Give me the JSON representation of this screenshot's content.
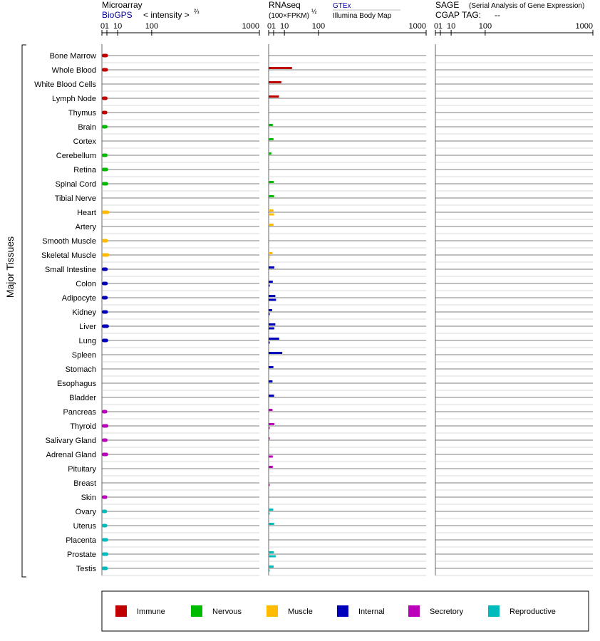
{
  "panels": {
    "microarray": {
      "title": "Microarray",
      "source": "BioGPS",
      "unit": "< intensity >",
      "unit_exp": "⅔",
      "ticks": [
        "0",
        "1",
        "10",
        "100",
        "1000"
      ]
    },
    "rnaseq": {
      "title": "RNAseq",
      "unit": "(100×FPKM)",
      "unit_exp": "½",
      "source1": "GTEx",
      "source2": "Illumina Body Map",
      "ticks": [
        "0",
        "1",
        "10",
        "100",
        "1000"
      ]
    },
    "sage": {
      "title": "SAGE",
      "subtitle": "(Serial Analysis of Gene Expression)",
      "cgap": "CGAP TAG:",
      "cgap_value": "--",
      "ticks": [
        "0",
        "1",
        "10",
        "100",
        "1000"
      ]
    }
  },
  "y_group_label": "Major Tissues",
  "chart_data": {
    "type": "bar",
    "orientation": "horizontal",
    "x_scale": "power transform (0, 1, 10, 100, 1000)",
    "categories": [
      "Bone Marrow",
      "Whole Blood",
      "White Blood Cells",
      "Lymph Node",
      "Thymus",
      "Brain",
      "Cortex",
      "Cerebellum",
      "Retina",
      "Spinal Cord",
      "Tibial Nerve",
      "Heart",
      "Artery",
      "Smooth Muscle",
      "Skeletal Muscle",
      "Small Intestine",
      "Colon",
      "Adipocyte",
      "Kidney",
      "Liver",
      "Lung",
      "Spleen",
      "Stomach",
      "Esophagus",
      "Bladder",
      "Pancreas",
      "Thyroid",
      "Salivary Gland",
      "Adrenal Gland",
      "Pituitary",
      "Breast",
      "Skin",
      "Ovary",
      "Uterus",
      "Placenta",
      "Prostate",
      "Testis"
    ],
    "groups": [
      "Immune",
      "Immune",
      "Immune",
      "Immune",
      "Immune",
      "Nervous",
      "Nervous",
      "Nervous",
      "Nervous",
      "Nervous",
      "Nervous",
      "Muscle",
      "Muscle",
      "Muscle",
      "Muscle",
      "Internal",
      "Internal",
      "Internal",
      "Internal",
      "Internal",
      "Internal",
      "Internal",
      "Internal",
      "Internal",
      "Internal",
      "Secretory",
      "Secretory",
      "Secretory",
      "Secretory",
      "Secretory",
      "Secretory",
      "Secretory",
      "Reproductive",
      "Reproductive",
      "Reproductive",
      "Reproductive",
      "Reproductive"
    ],
    "series": [
      {
        "name": "BioGPS",
        "values": [
          1.5,
          1.5,
          null,
          1.3,
          1.2,
          1.3,
          null,
          1.3,
          1.6,
          1.6,
          null,
          2.2,
          null,
          1.5,
          2.2,
          1.4,
          1.4,
          1.4,
          1.5,
          2.0,
          1.6,
          null,
          null,
          null,
          null,
          1.2,
          1.7,
          1.3,
          1.6,
          null,
          null,
          1.2,
          1.1,
          1.2,
          1.6,
          1.7,
          1.4
        ]
      },
      {
        "name": "GTEx",
        "values": [
          null,
          22,
          6.5,
          4.3,
          null,
          0.7,
          0.95,
          0.3,
          null,
          1.1,
          1.2,
          0.95,
          0.95,
          null,
          0.6,
          1.3,
          0.7,
          1.8,
          0.5,
          1.8,
          4.5,
          7.5,
          0.9,
          0.6,
          1.2,
          0.6,
          1.3,
          0,
          null,
          0.7,
          null,
          null,
          0.85,
          1.2,
          null,
          1.1,
          1.0
        ]
      },
      {
        "name": "Illumina Body Map",
        "values": [
          null,
          null,
          null,
          null,
          null,
          null,
          null,
          null,
          null,
          null,
          null,
          1.2,
          null,
          null,
          0,
          null,
          0,
          2.2,
          0,
          1.3,
          0,
          null,
          null,
          null,
          null,
          null,
          0,
          null,
          0.7,
          null,
          0,
          null,
          0,
          null,
          null,
          2.0,
          0
        ]
      }
    ],
    "legend": [
      {
        "name": "Immune",
        "color": "#c00000"
      },
      {
        "name": "Nervous",
        "color": "#00bb00"
      },
      {
        "name": "Muscle",
        "color": "#ffbb00"
      },
      {
        "name": "Internal",
        "color": "#0000bb"
      },
      {
        "name": "Secretory",
        "color": "#bb00bb"
      },
      {
        "name": "Reproductive",
        "color": "#00bbbb"
      }
    ],
    "legend_position": "bottom"
  }
}
